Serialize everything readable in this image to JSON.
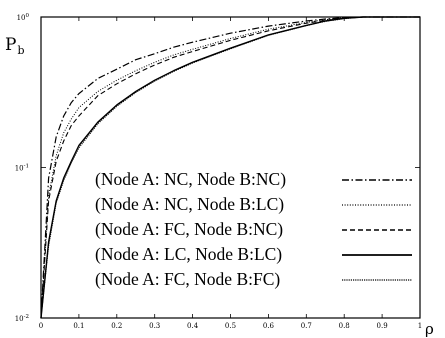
{
  "chart_data": {
    "type": "line",
    "xlabel": "ρ",
    "ylabel": "P",
    "ylabel_sub": "b",
    "xlim": [
      0,
      1
    ],
    "ylim": [
      0.01,
      1
    ],
    "yscale": "log",
    "grid": false,
    "legend_position": "lower-right, inside plot",
    "x_ticks": [
      "0",
      "0.1",
      "0.2",
      "0.3",
      "0.4",
      "0.5",
      "0.6",
      "0.7",
      "0.8",
      "0.9",
      "1"
    ],
    "y_ticks": [
      {
        "base": "10",
        "exp": "-2",
        "value": 0.01
      },
      {
        "base": "10",
        "exp": "-1",
        "value": 0.1
      },
      {
        "base": "10",
        "exp": "0",
        "value": 1
      }
    ],
    "series": [
      {
        "name": "(Node A: NC, Node B:NC)",
        "style": "dashdot",
        "x": [
          0,
          0.02,
          0.04,
          0.06,
          0.08,
          0.1,
          0.15,
          0.2,
          0.25,
          0.3,
          0.35,
          0.4,
          0.5,
          0.6,
          0.7,
          0.75,
          0.8,
          0.85,
          1
        ],
        "y": [
          0.01,
          0.085,
          0.16,
          0.22,
          0.27,
          0.31,
          0.39,
          0.45,
          0.52,
          0.57,
          0.63,
          0.68,
          0.78,
          0.87,
          0.94,
          0.97,
          0.99,
          1,
          1
        ]
      },
      {
        "name": "(Node A: NC, Node B:LC)",
        "style": "dotted",
        "x": [
          0,
          0.02,
          0.04,
          0.06,
          0.08,
          0.1,
          0.15,
          0.2,
          0.25,
          0.3,
          0.35,
          0.4,
          0.5,
          0.6,
          0.7,
          0.75,
          0.8,
          0.85,
          1
        ],
        "y": [
          0.01,
          0.065,
          0.12,
          0.17,
          0.21,
          0.25,
          0.32,
          0.38,
          0.44,
          0.5,
          0.56,
          0.61,
          0.72,
          0.83,
          0.92,
          0.96,
          0.99,
          1,
          1
        ]
      },
      {
        "name": "(Node A: FC, Node B:NC)",
        "style": "dashed",
        "x": [
          0,
          0.02,
          0.04,
          0.06,
          0.08,
          0.1,
          0.15,
          0.2,
          0.25,
          0.3,
          0.35,
          0.4,
          0.5,
          0.6,
          0.7,
          0.75,
          0.8,
          0.85,
          1
        ],
        "y": [
          0.01,
          0.06,
          0.11,
          0.15,
          0.19,
          0.22,
          0.3,
          0.36,
          0.42,
          0.48,
          0.54,
          0.59,
          0.7,
          0.81,
          0.91,
          0.95,
          0.98,
          1,
          1
        ]
      },
      {
        "name": "(Node A: LC, Node B:LC)",
        "style": "solid",
        "x": [
          0,
          0.02,
          0.04,
          0.06,
          0.08,
          0.1,
          0.15,
          0.2,
          0.25,
          0.3,
          0.35,
          0.4,
          0.5,
          0.6,
          0.7,
          0.75,
          0.8,
          0.85,
          1
        ],
        "y": [
          0.01,
          0.032,
          0.06,
          0.085,
          0.11,
          0.14,
          0.2,
          0.26,
          0.32,
          0.38,
          0.44,
          0.5,
          0.62,
          0.76,
          0.88,
          0.94,
          0.98,
          1,
          1
        ]
      },
      {
        "name": "(Node A: FC, Node B:FC)",
        "style": "densely-dotted",
        "x": [
          0,
          0.02,
          0.04,
          0.06,
          0.08,
          0.1,
          0.15,
          0.2,
          0.25,
          0.3,
          0.35,
          0.4,
          0.5,
          0.6,
          0.7,
          0.75,
          0.8,
          0.85,
          1
        ],
        "y": [
          0.01,
          0.03,
          0.058,
          0.082,
          0.107,
          0.135,
          0.195,
          0.255,
          0.315,
          0.375,
          0.435,
          0.495,
          0.615,
          0.755,
          0.875,
          0.935,
          0.975,
          1,
          1
        ]
      }
    ]
  }
}
